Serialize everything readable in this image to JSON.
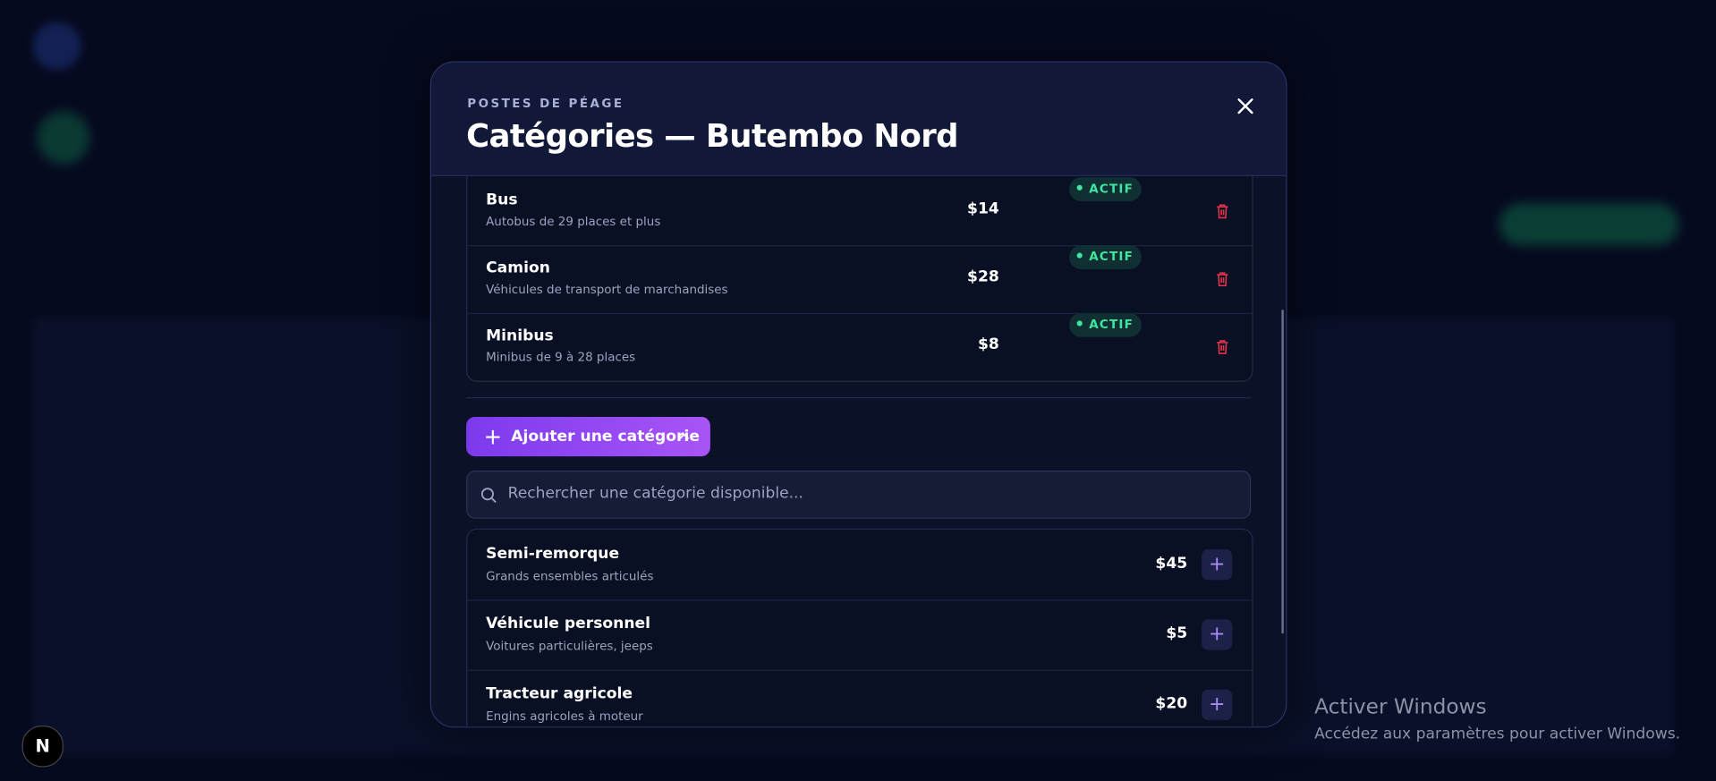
{
  "header": {
    "eyebrow": "POSTES DE PÉAGE",
    "title": "Catégories — Butembo Nord"
  },
  "assigned": [
    {
      "name": "Bus",
      "description": "Autobus de 29 places et plus",
      "price": "$14",
      "status": "ACTIF"
    },
    {
      "name": "Camion",
      "description": "Véhicules de transport de marchandises",
      "price": "$28",
      "status": "ACTIF"
    },
    {
      "name": "Minibus",
      "description": "Minibus de 9 à 28 places",
      "price": "$8",
      "status": "ACTIF"
    }
  ],
  "add_button": "Ajouter une catégorie",
  "search_placeholder": "Rechercher une catégorie disponible...",
  "available": [
    {
      "name": "Semi-remorque",
      "description": "Grands ensembles articulés",
      "price": "$45"
    },
    {
      "name": "Véhicule personnel",
      "description": "Voitures particulières, jeeps",
      "price": "$5"
    },
    {
      "name": "Tracteur agricole",
      "description": "Engins agricoles à moteur",
      "price": "$20"
    }
  ],
  "watermark": {
    "title": "Activer Windows",
    "subtitle": "Accédez aux paramètres pour activer Windows."
  },
  "badge": "N"
}
